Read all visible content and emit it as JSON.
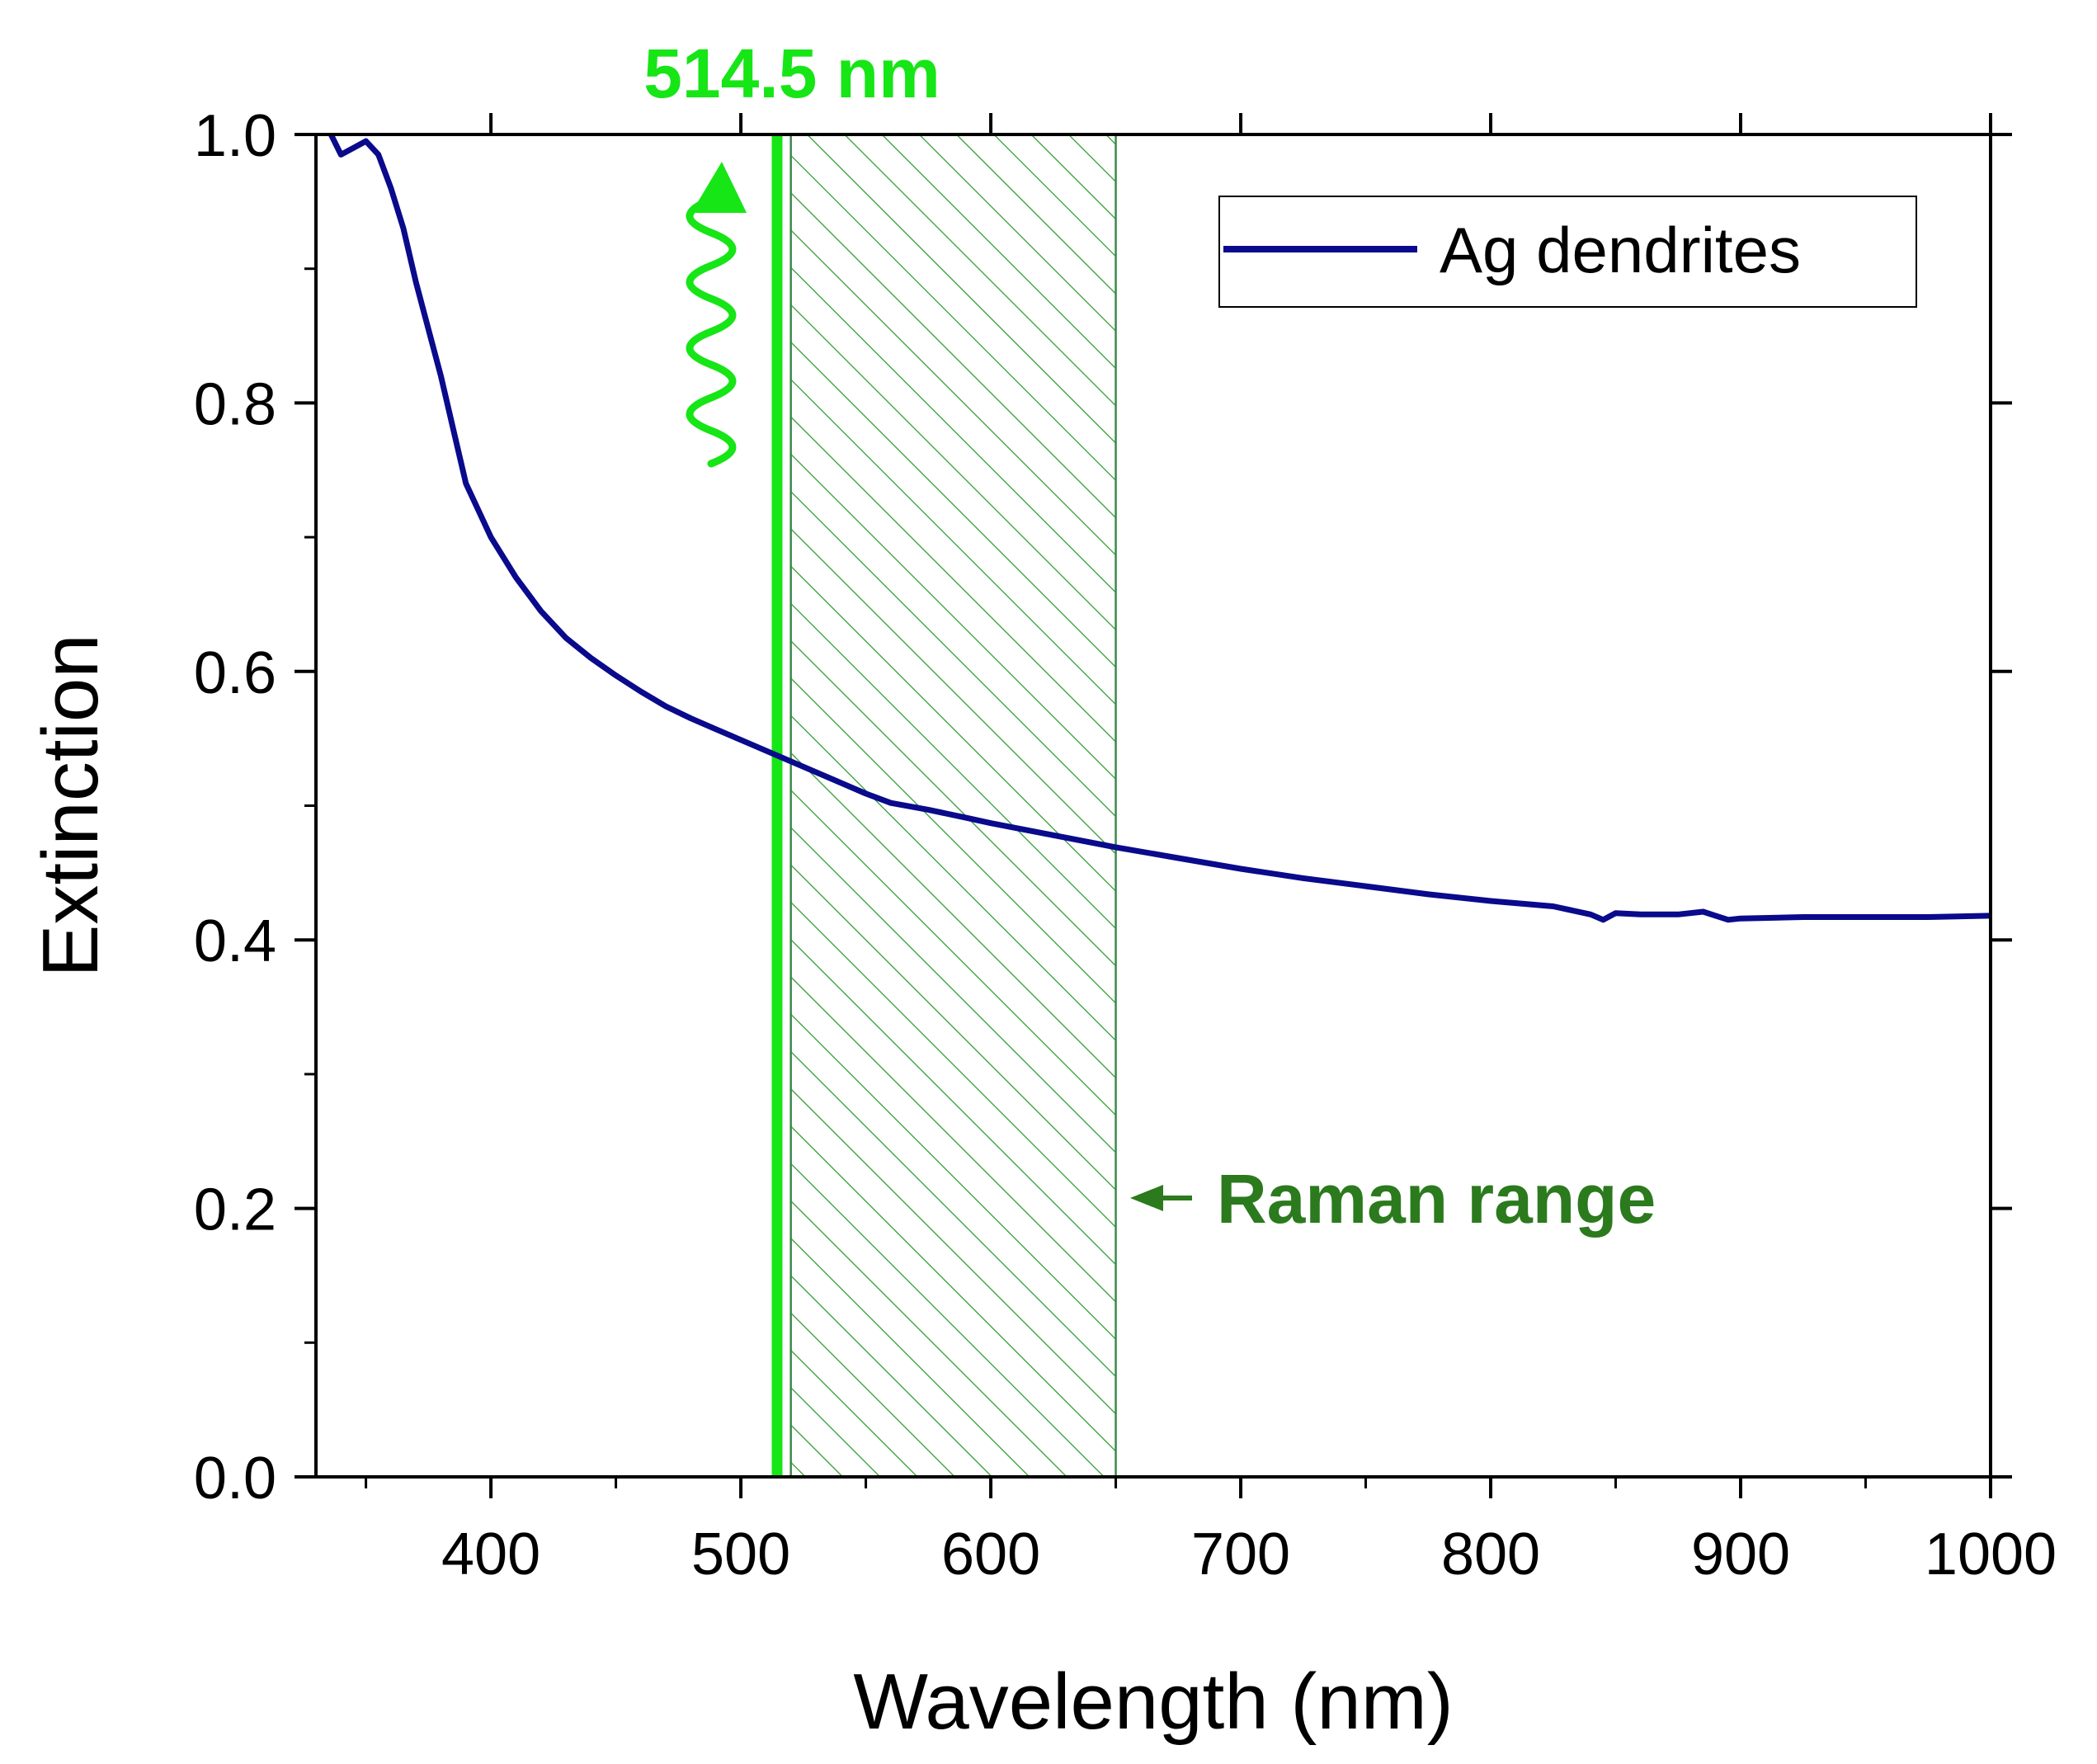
{
  "chart_data": {
    "type": "line",
    "title": "",
    "xlabel": "Wavelength (nm)",
    "ylabel": "Extinction",
    "xlim": [
      330,
      1000
    ],
    "ylim": [
      0.0,
      1.0
    ],
    "xticks": [
      400,
      500,
      600,
      700,
      800,
      900,
      1000
    ],
    "xtick_labels": [
      "400",
      "500",
      "600",
      "700",
      "800",
      "900",
      "1000"
    ],
    "yticks": [
      0.0,
      0.2,
      0.4,
      0.6,
      0.8,
      1.0
    ],
    "ytick_labels": [
      "0.0",
      "0.2",
      "0.4",
      "0.6",
      "0.8",
      "1.0"
    ],
    "grid": false,
    "legend": {
      "position": "top-right",
      "entries": [
        "Ag dendrites"
      ]
    },
    "series": [
      {
        "name": "Ag dendrites",
        "color": "#0a0a8c",
        "x": [
          336,
          340,
          345,
          350,
          355,
          360,
          365,
          370,
          375,
          380,
          385,
          390,
          400,
          410,
          420,
          430,
          440,
          450,
          460,
          470,
          480,
          490,
          500,
          510,
          520,
          530,
          540,
          550,
          560,
          575,
          590,
          600,
          625,
          650,
          675,
          700,
          725,
          750,
          775,
          800,
          825,
          840,
          845,
          850,
          860,
          875,
          885,
          890,
          895,
          900,
          925,
          950,
          975,
          1000
        ],
        "y": [
          1.0,
          0.985,
          0.99,
          0.995,
          0.985,
          0.96,
          0.93,
          0.89,
          0.855,
          0.82,
          0.78,
          0.74,
          0.7,
          0.67,
          0.645,
          0.625,
          0.61,
          0.597,
          0.585,
          0.574,
          0.565,
          0.557,
          0.549,
          0.541,
          0.533,
          0.525,
          0.517,
          0.509,
          0.502,
          0.497,
          0.491,
          0.487,
          0.478,
          0.469,
          0.461,
          0.453,
          0.446,
          0.44,
          0.434,
          0.429,
          0.425,
          0.419,
          0.415,
          0.42,
          0.419,
          0.419,
          0.421,
          0.418,
          0.415,
          0.416,
          0.417,
          0.417,
          0.417,
          0.418
        ]
      }
    ],
    "annotations": [
      {
        "type": "vline",
        "x": 514.5,
        "label": "514.5 nm",
        "color": "#16e516"
      },
      {
        "type": "hatched-band",
        "x_start": 520,
        "x_end": 650,
        "label": "Raman range",
        "color": "#2b7a1d"
      }
    ]
  }
}
